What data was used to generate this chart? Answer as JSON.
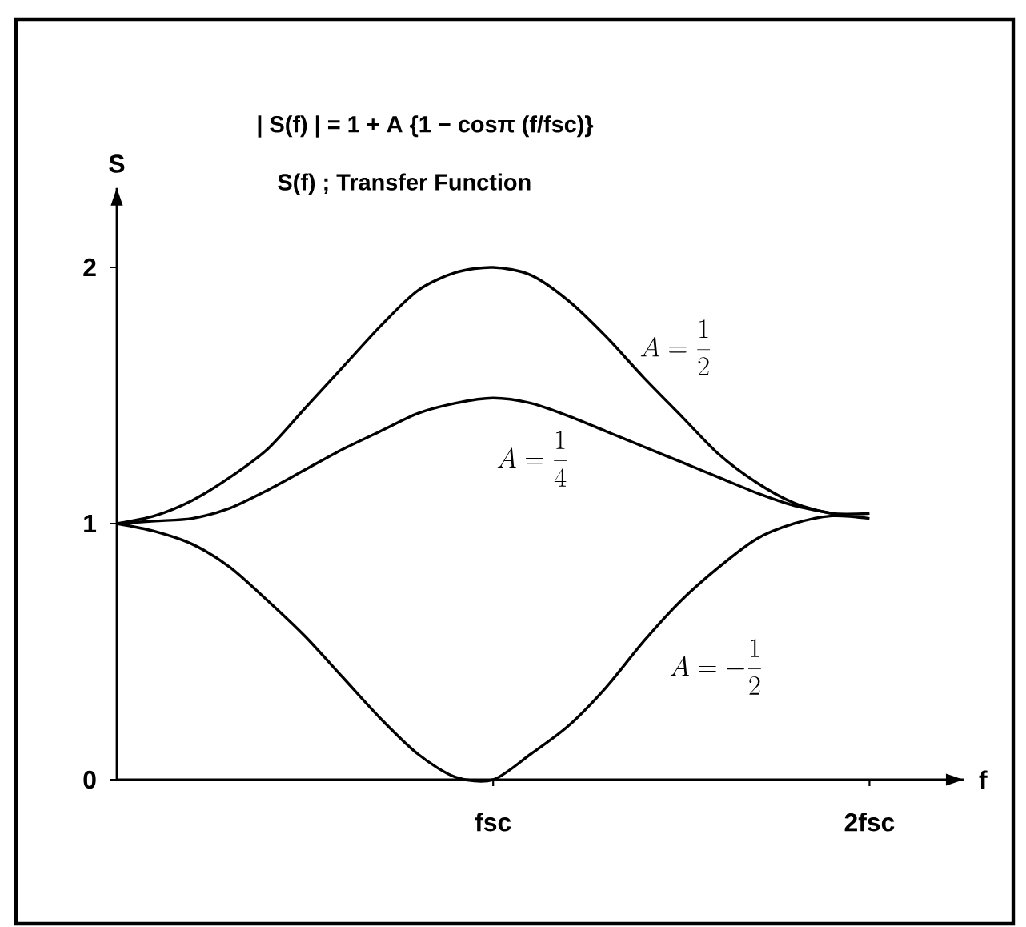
{
  "chart_data": {
    "type": "line",
    "title": "| S(f) | = 1 + A {1 − cosπ (f/fsc)}",
    "subtitle": "S(f) ; Transfer Function",
    "xlabel": "f",
    "ylabel": "S",
    "categories": [
      null,
      null,
      null,
      null,
      null,
      null,
      null,
      null,
      null,
      null,
      "fsc",
      null,
      null,
      null,
      null,
      null,
      null,
      null,
      null,
      null,
      "2fsc"
    ],
    "series": [
      {
        "name": "A=\\frac{1}{2}",
        "color": "#000000",
        "values": [
          1.0,
          1.03,
          1.09,
          1.18,
          1.29,
          1.45,
          1.61,
          1.77,
          1.91,
          1.98,
          2.0,
          1.97,
          1.87,
          1.73,
          1.57,
          1.42,
          1.27,
          1.16,
          1.08,
          1.04,
          1.04
        ]
      },
      {
        "name": "A=\\frac{1}{4}",
        "color": "#000000",
        "values": [
          1.0,
          1.01,
          1.02,
          1.06,
          1.13,
          1.21,
          1.29,
          1.36,
          1.43,
          1.47,
          1.49,
          1.47,
          1.42,
          1.36,
          1.3,
          1.24,
          1.18,
          1.12,
          1.07,
          1.04,
          null
        ]
      },
      {
        "name": "A=-\\frac{1}{2}",
        "color": "#000000",
        "values": [
          1.0,
          0.97,
          0.92,
          0.83,
          0.7,
          0.56,
          0.4,
          0.24,
          0.1,
          0.01,
          0.0,
          0.1,
          0.21,
          0.36,
          0.54,
          0.7,
          0.83,
          0.94,
          1.0,
          1.03,
          1.02
        ]
      }
    ],
    "ylim": [
      0,
      2.31
    ],
    "yticks": [
      0,
      1,
      2
    ]
  }
}
